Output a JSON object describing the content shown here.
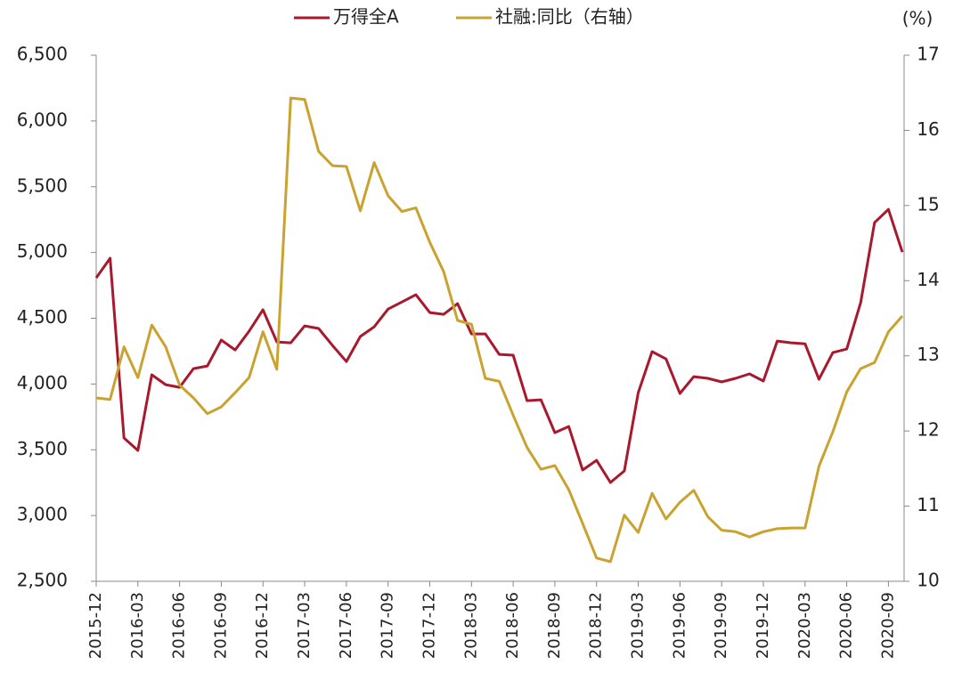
{
  "chart_data": {
    "type": "line",
    "y2label": "(%)",
    "categories": [
      "2015-12",
      null,
      null,
      "2016-03",
      null,
      null,
      "2016-06",
      null,
      null,
      "2016-09",
      null,
      null,
      "2016-12",
      null,
      null,
      "2017-03",
      null,
      null,
      "2017-06",
      null,
      null,
      "2017-09",
      null,
      null,
      "2017-12",
      null,
      null,
      "2018-03",
      null,
      null,
      "2018-06",
      null,
      null,
      "2018-09",
      null,
      null,
      "2018-12",
      null,
      null,
      "2019-03",
      null,
      null,
      "2019-06",
      null,
      null,
      "2019-09",
      null,
      null,
      "2019-12",
      null,
      null,
      "2020-03",
      null,
      null,
      "2020-06",
      null,
      null,
      "2020-09",
      null
    ],
    "series": [
      {
        "name": "万得全A",
        "color": "#a8192e",
        "axis": "y",
        "values": [
          4807,
          4956,
          3590,
          3495,
          4070,
          3995,
          3975,
          4117,
          4137,
          4334,
          4259,
          4401,
          4564,
          4320,
          4313,
          4442,
          4422,
          4293,
          4171,
          4361,
          4435,
          4570,
          4624,
          4679,
          4543,
          4530,
          4611,
          4381,
          4381,
          4225,
          4219,
          3873,
          3880,
          3630,
          3677,
          3346,
          3420,
          3251,
          3339,
          3934,
          4246,
          4191,
          3928,
          4056,
          4043,
          4016,
          4043,
          4077,
          4023,
          4327,
          4313,
          4306,
          4036,
          4239,
          4266,
          4618,
          5227,
          5328,
          5003
        ]
      },
      {
        "name": "社融:同比（右轴）",
        "color": "#c9a230",
        "axis": "y2",
        "values": [
          12.44,
          12.42,
          13.12,
          12.71,
          13.41,
          13.12,
          12.61,
          12.44,
          12.23,
          12.32,
          12.51,
          12.71,
          13.32,
          12.82,
          16.43,
          16.41,
          15.72,
          15.53,
          15.52,
          14.93,
          15.57,
          15.13,
          14.92,
          14.97,
          14.51,
          14.12,
          13.47,
          13.42,
          12.7,
          12.66,
          12.21,
          11.78,
          11.49,
          11.54,
          11.22,
          10.77,
          10.31,
          10.26,
          10.88,
          10.65,
          11.17,
          10.83,
          11.05,
          11.21,
          10.86,
          10.68,
          10.66,
          10.59,
          10.66,
          10.7,
          10.71,
          10.71,
          11.53,
          11.99,
          12.52,
          12.83,
          12.91,
          13.32,
          13.53
        ]
      }
    ],
    "ylim": [
      2500,
      6500
    ],
    "yticks": [
      {
        "value": 2500,
        "label": "2,500"
      },
      {
        "value": 3000,
        "label": "3,000"
      },
      {
        "value": 3500,
        "label": "3,500"
      },
      {
        "value": 4000,
        "label": "4,000"
      },
      {
        "value": 4500,
        "label": "4,500"
      },
      {
        "value": 5000,
        "label": "5,000"
      },
      {
        "value": 5500,
        "label": "5,500"
      },
      {
        "value": 6000,
        "label": "6,000"
      },
      {
        "value": 6500,
        "label": "6,500"
      }
    ],
    "y2lim": [
      10,
      17
    ],
    "y2ticks": [
      10,
      11,
      12,
      13,
      14,
      15,
      16,
      17
    ],
    "legend": "top"
  }
}
